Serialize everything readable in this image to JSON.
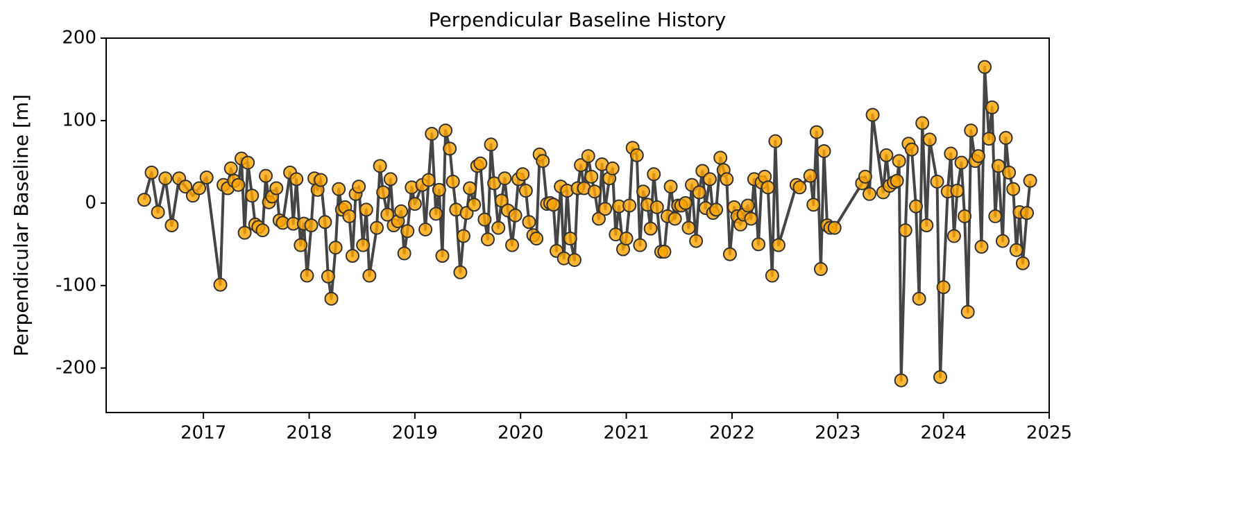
{
  "chart_data": {
    "type": "line",
    "title": "Perpendicular Baseline History",
    "ylabel": "Perpendicular Baseline [m]",
    "x": [
      2016.44,
      2016.51,
      2016.57,
      2016.64,
      2016.7,
      2016.77,
      2016.83,
      2016.9,
      2016.96,
      2017.03,
      2017.16,
      2017.19,
      2017.23,
      2017.26,
      2017.29,
      2017.33,
      2017.36,
      2017.39,
      2017.42,
      2017.46,
      2017.49,
      2017.52,
      2017.56,
      2017.59,
      2017.62,
      2017.65,
      2017.69,
      2017.72,
      2017.75,
      2017.82,
      2017.85,
      2017.88,
      2017.92,
      2017.95,
      2017.98,
      2018.02,
      2018.05,
      2018.08,
      2018.11,
      2018.15,
      2018.18,
      2018.21,
      2018.25,
      2018.28,
      2018.31,
      2018.34,
      2018.38,
      2018.41,
      2018.44,
      2018.47,
      2018.51,
      2018.54,
      2018.57,
      2018.64,
      2018.67,
      2018.7,
      2018.74,
      2018.77,
      2018.8,
      2018.84,
      2018.87,
      2018.9,
      2018.93,
      2018.97,
      2019.0,
      2019.07,
      2019.1,
      2019.13,
      2019.16,
      2019.2,
      2019.23,
      2019.26,
      2019.29,
      2019.33,
      2019.36,
      2019.39,
      2019.43,
      2019.46,
      2019.49,
      2019.52,
      2019.56,
      2019.59,
      2019.62,
      2019.66,
      2019.69,
      2019.72,
      2019.75,
      2019.79,
      2019.82,
      2019.85,
      2019.88,
      2019.92,
      2019.95,
      2019.98,
      2020.02,
      2020.05,
      2020.08,
      2020.12,
      2020.15,
      2020.18,
      2020.21,
      2020.25,
      2020.28,
      2020.31,
      2020.34,
      2020.38,
      2020.41,
      2020.44,
      2020.47,
      2020.51,
      2020.54,
      2020.57,
      2020.6,
      2020.64,
      2020.67,
      2020.7,
      2020.74,
      2020.77,
      2020.8,
      2020.84,
      2020.87,
      2020.9,
      2020.93,
      2020.97,
      2021.0,
      2021.03,
      2021.06,
      2021.1,
      2021.13,
      2021.16,
      2021.2,
      2021.23,
      2021.26,
      2021.29,
      2021.33,
      2021.36,
      2021.39,
      2021.42,
      2021.46,
      2021.49,
      2021.52,
      2021.56,
      2021.59,
      2021.62,
      2021.66,
      2021.69,
      2021.72,
      2021.75,
      2021.79,
      2021.82,
      2021.85,
      2021.89,
      2021.92,
      2021.95,
      2021.98,
      2022.02,
      2022.05,
      2022.08,
      2022.11,
      2022.15,
      2022.18,
      2022.21,
      2022.25,
      2022.28,
      2022.31,
      2022.34,
      2022.38,
      2022.41,
      2022.44,
      2022.61,
      2022.64,
      2022.74,
      2022.77,
      2022.8,
      2022.84,
      2022.87,
      2022.9,
      2022.93,
      2022.97,
      2023.23,
      2023.26,
      2023.3,
      2023.33,
      2023.43,
      2023.46,
      2023.49,
      2023.53,
      2023.56,
      2023.58,
      2023.6,
      2023.64,
      2023.67,
      2023.7,
      2023.74,
      2023.77,
      2023.8,
      2023.84,
      2023.87,
      2023.94,
      2023.97,
      2024.0,
      2024.04,
      2024.07,
      2024.1,
      2024.13,
      2024.17,
      2024.2,
      2024.23,
      2024.26,
      2024.3,
      2024.33,
      2024.36,
      2024.39,
      2024.43,
      2024.46,
      2024.49,
      2024.52,
      2024.56,
      2024.59,
      2024.62,
      2024.66,
      2024.69,
      2024.72,
      2024.75,
      2024.79,
      2024.82
    ],
    "values": [
      4,
      37,
      -11,
      30,
      -27,
      30,
      20,
      9,
      18,
      31,
      -99,
      22,
      18,
      42,
      27,
      22,
      54,
      -36,
      49,
      9,
      -26,
      -29,
      -33,
      33,
      1,
      8,
      18,
      -21,
      -24,
      37,
      -25,
      29,
      -51,
      -25,
      -88,
      -27,
      30,
      16,
      28,
      -23,
      -89,
      -116,
      -54,
      17,
      -8,
      -5,
      -16,
      -64,
      11,
      20,
      -51,
      -8,
      -88,
      -30,
      45,
      13,
      -14,
      29,
      -27,
      -22,
      -10,
      -61,
      -34,
      19,
      -1,
      22,
      -32,
      28,
      84,
      -13,
      16,
      -64,
      88,
      66,
      26,
      -8,
      -84,
      -40,
      -12,
      18,
      -2,
      45,
      48,
      -20,
      -44,
      71,
      24,
      -30,
      3,
      30,
      -9,
      -51,
      -15,
      29,
      35,
      15,
      -23,
      -39,
      -43,
      59,
      51,
      -1,
      0,
      -2,
      -58,
      20,
      -67,
      15,
      -43,
      -69,
      18,
      46,
      18,
      57,
      32,
      14,
      -19,
      47,
      -7,
      30,
      42,
      -38,
      -4,
      -56,
      -43,
      -3,
      67,
      58,
      -51,
      14,
      -2,
      -31,
      35,
      -5,
      -59,
      -59,
      -16,
      20,
      -19,
      -3,
      -3,
      0,
      -30,
      22,
      -46,
      13,
      39,
      -6,
      29,
      -12,
      -8,
      55,
      40,
      29,
      -62,
      -5,
      -16,
      -26,
      -14,
      -3,
      -19,
      29,
      -50,
      25,
      32,
      19,
      -88,
      75,
      -51,
      22,
      19,
      33,
      -2,
      86,
      -80,
      63,
      -27,
      -30,
      -30,
      24,
      32,
      11,
      107,
      13,
      58,
      21,
      25,
      27,
      51,
      -215,
      -33,
      72,
      65,
      -4,
      -116,
      97,
      -27,
      77,
      26,
      -211,
      -102,
      14,
      60,
      -40,
      15,
      49,
      -16,
      -132,
      88,
      51,
      57,
      -53,
      165,
      78,
      116,
      -16,
      45,
      -46,
      79,
      37,
      17,
      -57,
      -11,
      -73,
      -12,
      27
    ],
    "line_color": "#454545",
    "marker_color": "#ffa500",
    "marker_edge": "#333333",
    "xlim": [
      2016.08,
      2025.0
    ],
    "xticks": [
      2017,
      2018,
      2019,
      2020,
      2021,
      2022,
      2023,
      2024,
      2025
    ],
    "ylim": [
      -254,
      200
    ],
    "yticks": [
      -200,
      -100,
      0,
      100,
      200
    ]
  }
}
